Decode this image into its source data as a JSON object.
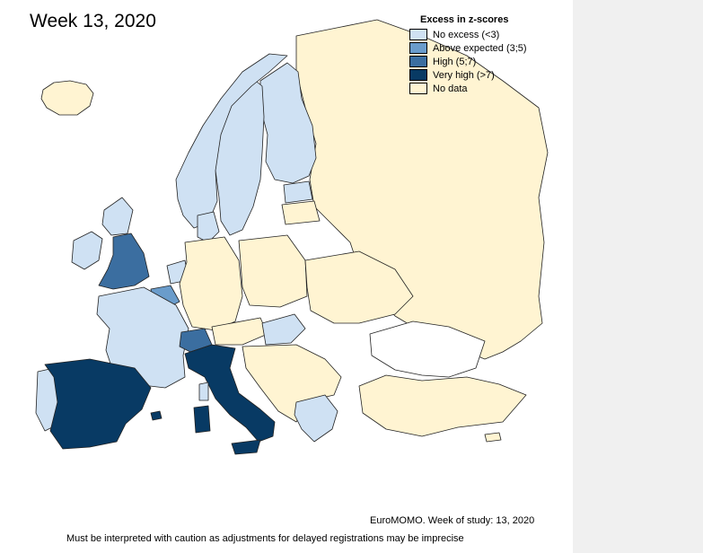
{
  "title": "Week 13, 2020",
  "legend": {
    "title": "Excess in z-scores",
    "items": [
      {
        "label": "No excess (<3)",
        "color": "#cfe1f3"
      },
      {
        "label": "Above expected (3;5)",
        "color": "#6a9ccb"
      },
      {
        "label": "High (5;7)",
        "color": "#3b6ea0"
      },
      {
        "label": "Very high (>7)",
        "color": "#083a64"
      },
      {
        "label": "No data",
        "color": "#fff4d2"
      }
    ]
  },
  "source": "EuroMOMO. Week of study: 13, 2020",
  "caveat": "Must be interpreted with caution as adjustments for delayed registrations may be imprecise",
  "map_colors": {
    "no_excess": "#cfe1f3",
    "above_expected": "#6a9ccb",
    "high": "#3b6ea0",
    "very_high": "#083a64",
    "no_data": "#fff4d2"
  }
}
